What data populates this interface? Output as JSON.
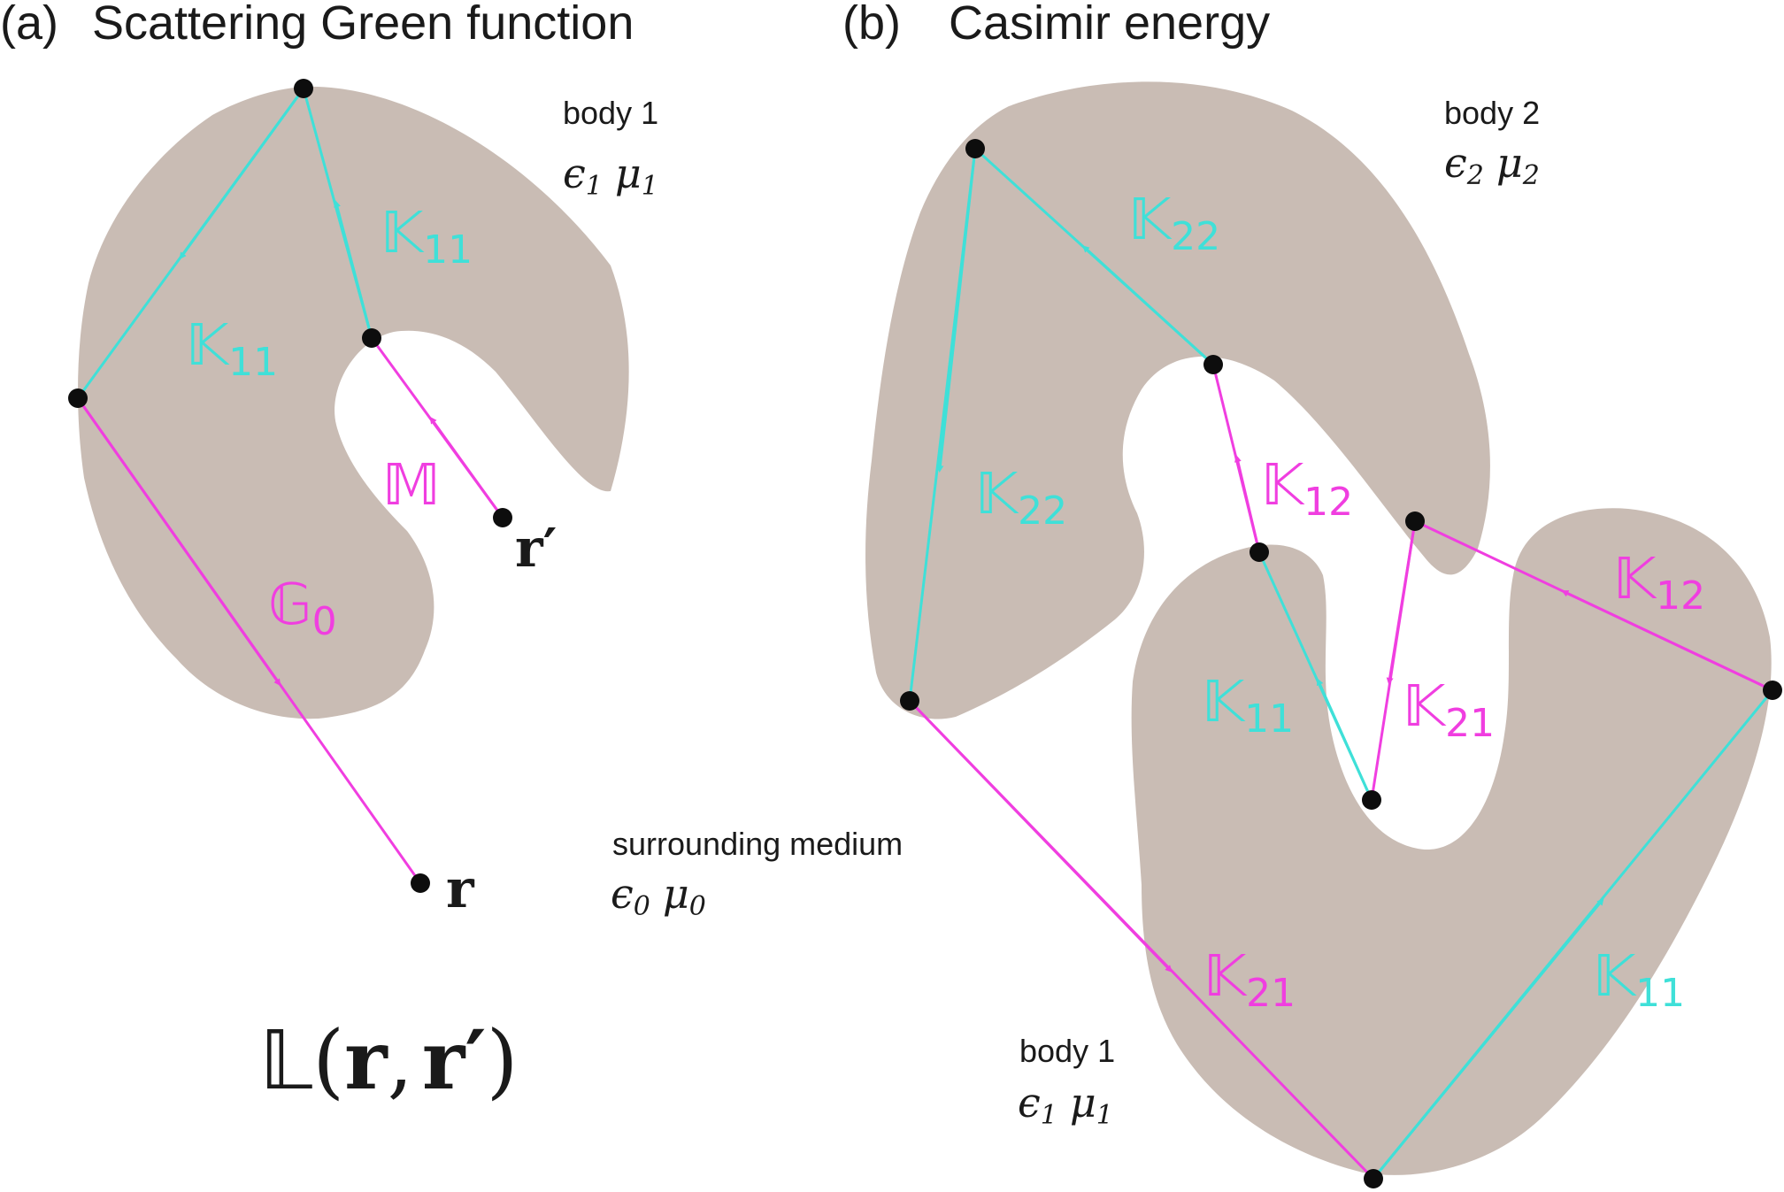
{
  "colors": {
    "body_fill": "#c9bcb4",
    "intra_body_path": "#3fe0d8",
    "inter_body_path": "#f03ee0",
    "node": "#0d0d0d"
  },
  "panel_a": {
    "label": "(a)",
    "title": "Scattering Green function",
    "body_label": "body 1",
    "body_props": {
      "eps": "ϵ",
      "eps_sub": "1",
      "mu": "μ",
      "mu_sub": "1"
    },
    "medium_label": "surrounding medium",
    "medium_props": {
      "eps": "ϵ",
      "eps_sub": "0",
      "mu": "μ",
      "mu_sub": "0"
    },
    "operators": {
      "K11_top": {
        "sym": "𝕂",
        "sub": "11"
      },
      "K11_left": {
        "sym": "𝕂",
        "sub": "11"
      },
      "M": {
        "sym": "𝕄"
      },
      "G0": {
        "sym": "𝔾",
        "sub": "0"
      }
    },
    "points": {
      "r": "r",
      "r_prime": "r′"
    },
    "formula": {
      "sym": "𝕃",
      "open": "(",
      "r": "r",
      "comma": ",",
      "r_prime": "r′",
      "close": ")"
    }
  },
  "panel_b": {
    "label": "(b)",
    "title": "Casimir energy",
    "body2_label": "body 2",
    "body2_props": {
      "eps": "ϵ",
      "eps_sub": "2",
      "mu": "μ",
      "mu_sub": "2"
    },
    "body1_label": "body 1",
    "body1_props": {
      "eps": "ϵ",
      "eps_sub": "1",
      "mu": "μ",
      "mu_sub": "1"
    },
    "operators": {
      "K22_top": {
        "sym": "𝕂",
        "sub": "22"
      },
      "K22_left": {
        "sym": "𝕂",
        "sub": "22"
      },
      "K12_mid": {
        "sym": "𝕂",
        "sub": "12"
      },
      "K12_right": {
        "sym": "𝕂",
        "sub": "12"
      },
      "K21_mid": {
        "sym": "𝕂",
        "sub": "21"
      },
      "K21_bottom": {
        "sym": "𝕂",
        "sub": "21"
      },
      "K11_mid": {
        "sym": "𝕂",
        "sub": "11"
      },
      "K11_right": {
        "sym": "𝕂",
        "sub": "11"
      }
    }
  }
}
